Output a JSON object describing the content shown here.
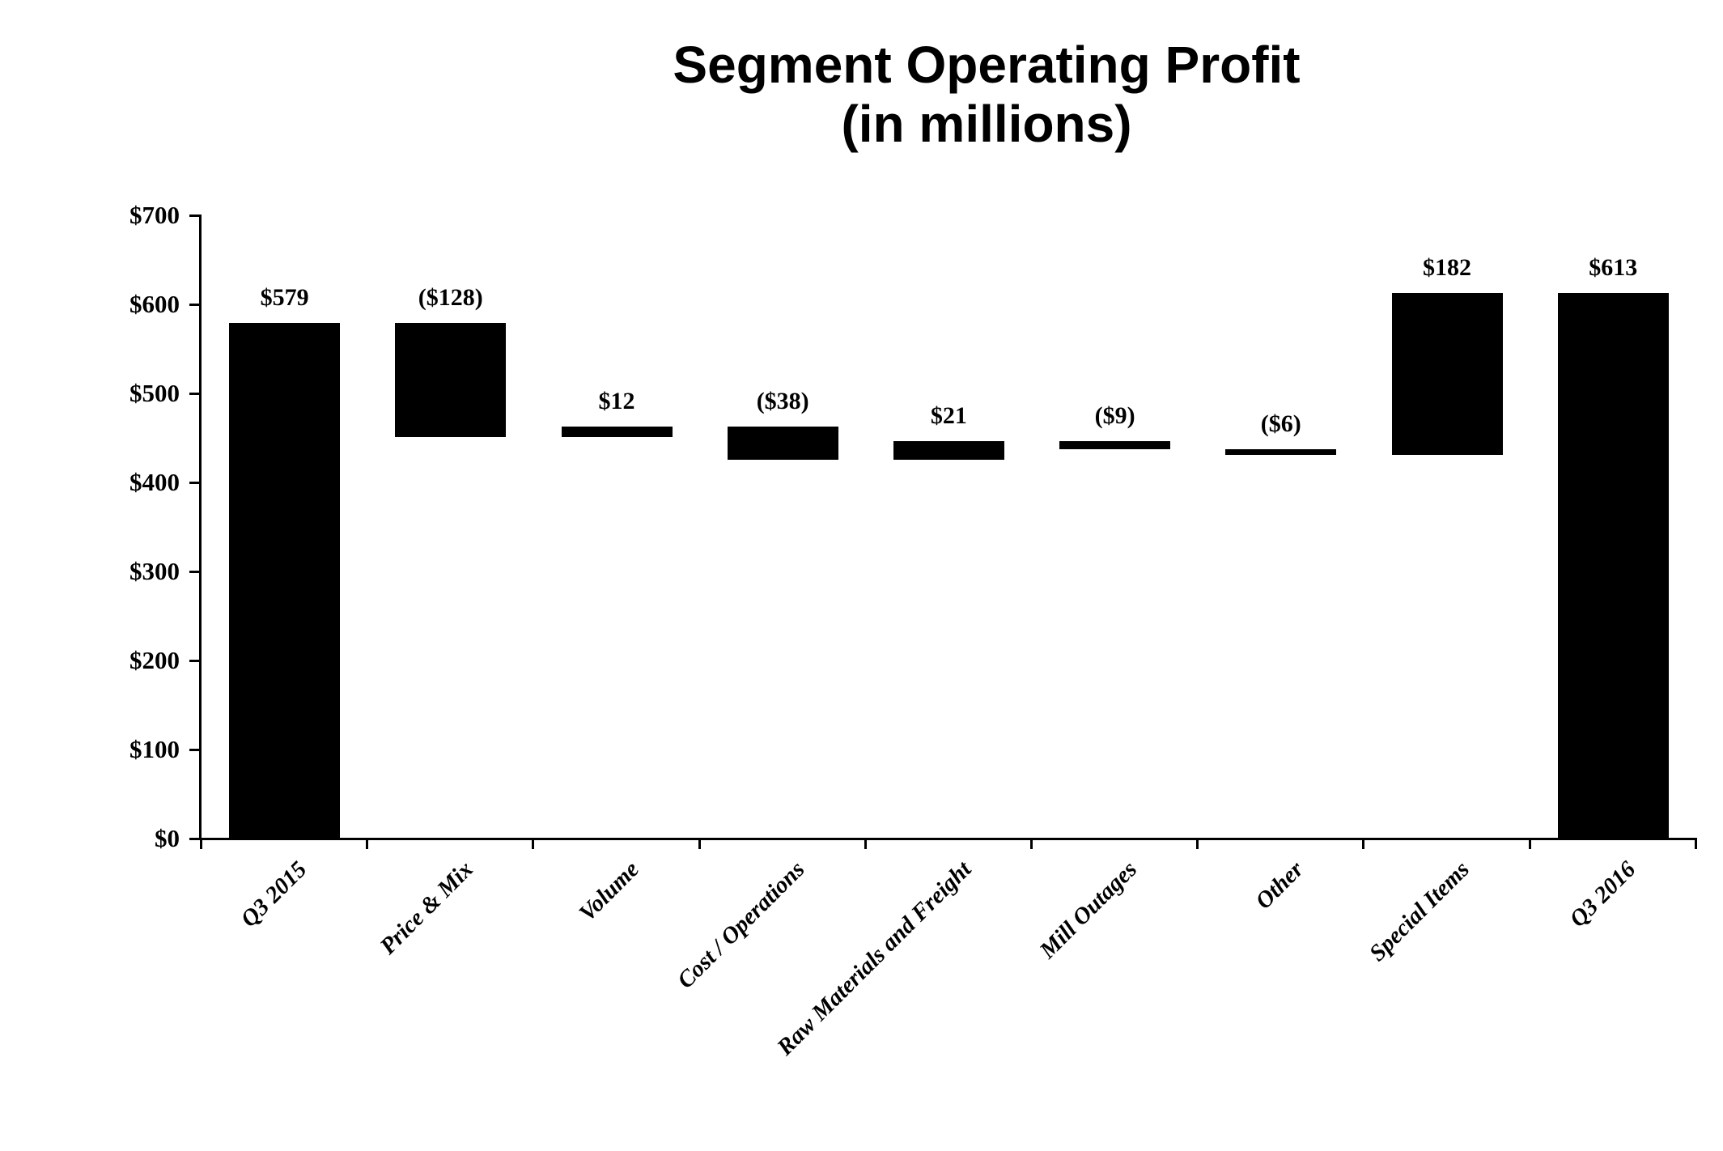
{
  "title": {
    "line1": "Segment Operating Profit",
    "line2": "(in millions)"
  },
  "chart_data": {
    "type": "bar",
    "subtype": "waterfall",
    "title": "Segment Operating Profit (in millions)",
    "xlabel": "",
    "ylabel": "",
    "ylim": [
      0,
      700
    ],
    "y_tick_step": 100,
    "grid": false,
    "legend": false,
    "bar_color": "#000000",
    "background_color": "#ffffff",
    "y_axis_tick_labels": [
      "$0",
      "$100",
      "$200",
      "$300",
      "$400",
      "$500",
      "$600",
      "$700"
    ],
    "y_axis_tick_values": [
      0,
      100,
      200,
      300,
      400,
      500,
      600,
      700
    ],
    "categories": [
      "Q3 2015",
      "Price & Mix",
      "Volume",
      "Cost / Operations",
      "Raw Materials and Freight",
      "Mill Outages",
      "Other",
      "Special Items",
      "Q3 2016"
    ],
    "bars": [
      {
        "label": "Q3 2015",
        "value_label": "$579",
        "value": 579,
        "start": 0,
        "end": 579
      },
      {
        "label": "Price & Mix",
        "value_label": "($128)",
        "value": -128,
        "start": 579,
        "end": 451
      },
      {
        "label": "Volume",
        "value_label": "$12",
        "value": 12,
        "start": 451,
        "end": 463
      },
      {
        "label": "Cost / Operations",
        "value_label": "($38)",
        "value": -38,
        "start": 463,
        "end": 425
      },
      {
        "label": "Raw Materials and Freight",
        "value_label": "$21",
        "value": 21,
        "start": 425,
        "end": 446
      },
      {
        "label": "Mill Outages",
        "value_label": "($9)",
        "value": -9,
        "start": 446,
        "end": 437
      },
      {
        "label": "Other",
        "value_label": "($6)",
        "value": -6,
        "start": 437,
        "end": 431
      },
      {
        "label": "Special Items",
        "value_label": "$182",
        "value": 182,
        "start": 431,
        "end": 613
      },
      {
        "label": "Q3 2016",
        "value_label": "$613",
        "value": 613,
        "start": 0,
        "end": 613
      }
    ]
  }
}
